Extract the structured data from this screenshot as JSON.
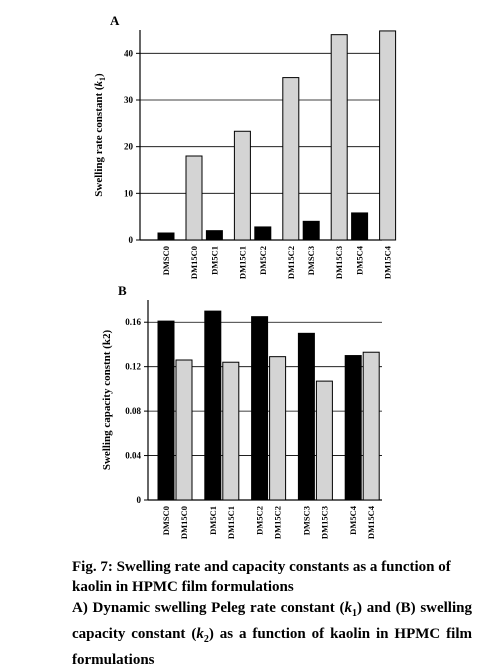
{
  "chart_data": [
    {
      "type": "bar",
      "panel_label": "A",
      "ylabel_text": "Swelling rate constant (",
      "ylabel_symbol": "k",
      "ylabel_sub": "1",
      "ylabel_close": ")",
      "ylim": [
        0,
        45
      ],
      "yticks": [
        0,
        10,
        20,
        30,
        40
      ],
      "categories": [
        [
          "DMSC0",
          "DM15C0"
        ],
        [
          "DM5C1",
          "DM15C1"
        ],
        [
          "DM5C2",
          "DM15C2"
        ],
        [
          "DMSC3",
          "DM15C3"
        ],
        [
          "DM5C4",
          "DM15C4"
        ]
      ],
      "series": [
        {
          "color": "#000000",
          "values": [
            1.5,
            2.0,
            2.8,
            4.0,
            5.8
          ]
        },
        {
          "color": "#d4d4d4",
          "values": [
            18.0,
            23.3,
            34.8,
            44.0,
            44.8
          ]
        }
      ],
      "grid": true
    },
    {
      "type": "bar",
      "panel_label": "B",
      "ylabel_text": "Swelling capacity constnt (k2)",
      "ylim": [
        0,
        0.18
      ],
      "yticks": [
        "0",
        "0.04",
        "0.08",
        "0.12",
        "0.16"
      ],
      "categories": [
        [
          "DMSC0",
          "DM15C0"
        ],
        [
          "DM5C1",
          "DM15C1"
        ],
        [
          "DM5C2",
          "DM15C2"
        ],
        [
          "DMSC3",
          "DM15C3"
        ],
        [
          "DM5C4",
          "DM15C4"
        ]
      ],
      "series": [
        {
          "color": "#000000",
          "values": [
            0.161,
            0.17,
            0.165,
            0.15,
            0.13
          ]
        },
        {
          "color": "#d4d4d4",
          "values": [
            0.126,
            0.124,
            0.129,
            0.107,
            0.133
          ]
        }
      ],
      "grid": true
    }
  ],
  "caption": {
    "title": "Fig. 7: Swelling rate and capacity constants as a function of kaolin in HPMC film formulations",
    "body_a": "A) Dynamic swelling Peleg rate constant (",
    "k": "k",
    "sub1": "1",
    "body_b": ") and (B) swelling capacity constant (",
    "sub2": "2",
    "body_c": ") as a function of kaolin in HPMC film formulations"
  }
}
